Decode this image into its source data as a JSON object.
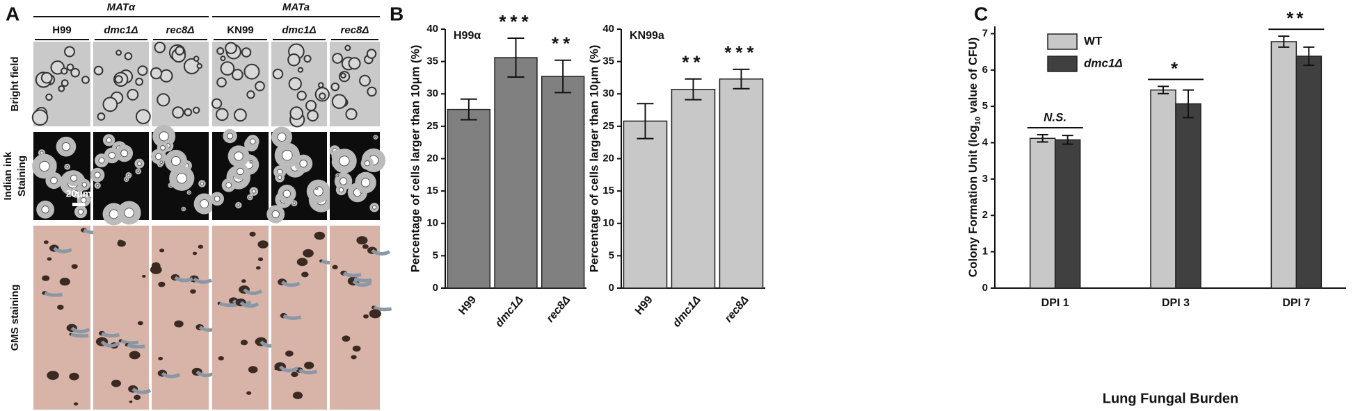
{
  "panels": [
    "A",
    "B",
    "C"
  ],
  "panel_a": {
    "groups": [
      "MATα",
      "MATa"
    ],
    "columns": [
      "H99",
      "dmc1Δ",
      "rec8Δ",
      "KN99",
      "dmc1Δ",
      "rec8Δ"
    ],
    "rows": [
      [
        "Bright field"
      ],
      [
        "Indian ink",
        "Staining"
      ],
      [
        "GMS staining"
      ]
    ],
    "scale_bar": "20μm"
  },
  "chart_data": [
    {
      "type": "bar",
      "title": "H99α",
      "ylabel": "Percentage of cells larger than 10μm (%)",
      "categories": [
        "H99",
        "dmc1Δ",
        "rec8Δ"
      ],
      "values": [
        27.6,
        35.6,
        32.7
      ],
      "errors": [
        1.6,
        3.0,
        2.5
      ],
      "color": "#808080",
      "ylim": [
        0,
        40
      ],
      "yticks": [
        0,
        5,
        10,
        15,
        20,
        25,
        30,
        35,
        40
      ],
      "annotations": [
        {
          "category": "dmc1Δ",
          "text": "***"
        },
        {
          "category": "rec8Δ",
          "text": "**"
        }
      ]
    },
    {
      "type": "bar",
      "title": "KN99a",
      "ylabel": "Percentage of cells larger than 10μm (%)",
      "categories": [
        "H99",
        "dmc1Δ",
        "rec8Δ"
      ],
      "values": [
        25.8,
        30.7,
        32.3
      ],
      "errors": [
        2.7,
        1.6,
        1.5
      ],
      "color": "#c8c8c8",
      "ylim": [
        0,
        40
      ],
      "yticks": [
        0,
        5,
        10,
        15,
        20,
        25,
        30,
        35,
        40
      ],
      "annotations": [
        {
          "category": "dmc1Δ",
          "text": "**"
        },
        {
          "category": "rec8Δ",
          "text": "***"
        }
      ]
    },
    {
      "type": "grouped_bar",
      "ylabel": [
        "Colony Formation Unit (log",
        "10",
        " value of CFU)"
      ],
      "xlabel": "Lung Fungal Burden",
      "categories": [
        "DPI 1",
        "DPI 3",
        "DPI 7"
      ],
      "series": [
        {
          "name": "WT",
          "color": "#c8c8c8",
          "values": [
            4.12,
            5.45,
            6.78
          ],
          "errors": [
            0.1,
            0.1,
            0.15
          ]
        },
        {
          "name": "dmc1Δ",
          "color": "#404040",
          "values": [
            4.08,
            5.07,
            6.38
          ],
          "errors": [
            0.12,
            0.38,
            0.25
          ]
        }
      ],
      "ylim": [
        0,
        7.2
      ],
      "yticks": [
        0,
        1,
        2,
        3,
        4,
        5,
        6,
        7
      ],
      "legend": "upper left",
      "annotations": [
        {
          "category": "DPI 1",
          "text": "N.S."
        },
        {
          "category": "DPI 3",
          "text": "*"
        },
        {
          "category": "DPI 7",
          "text": "**"
        }
      ]
    }
  ]
}
